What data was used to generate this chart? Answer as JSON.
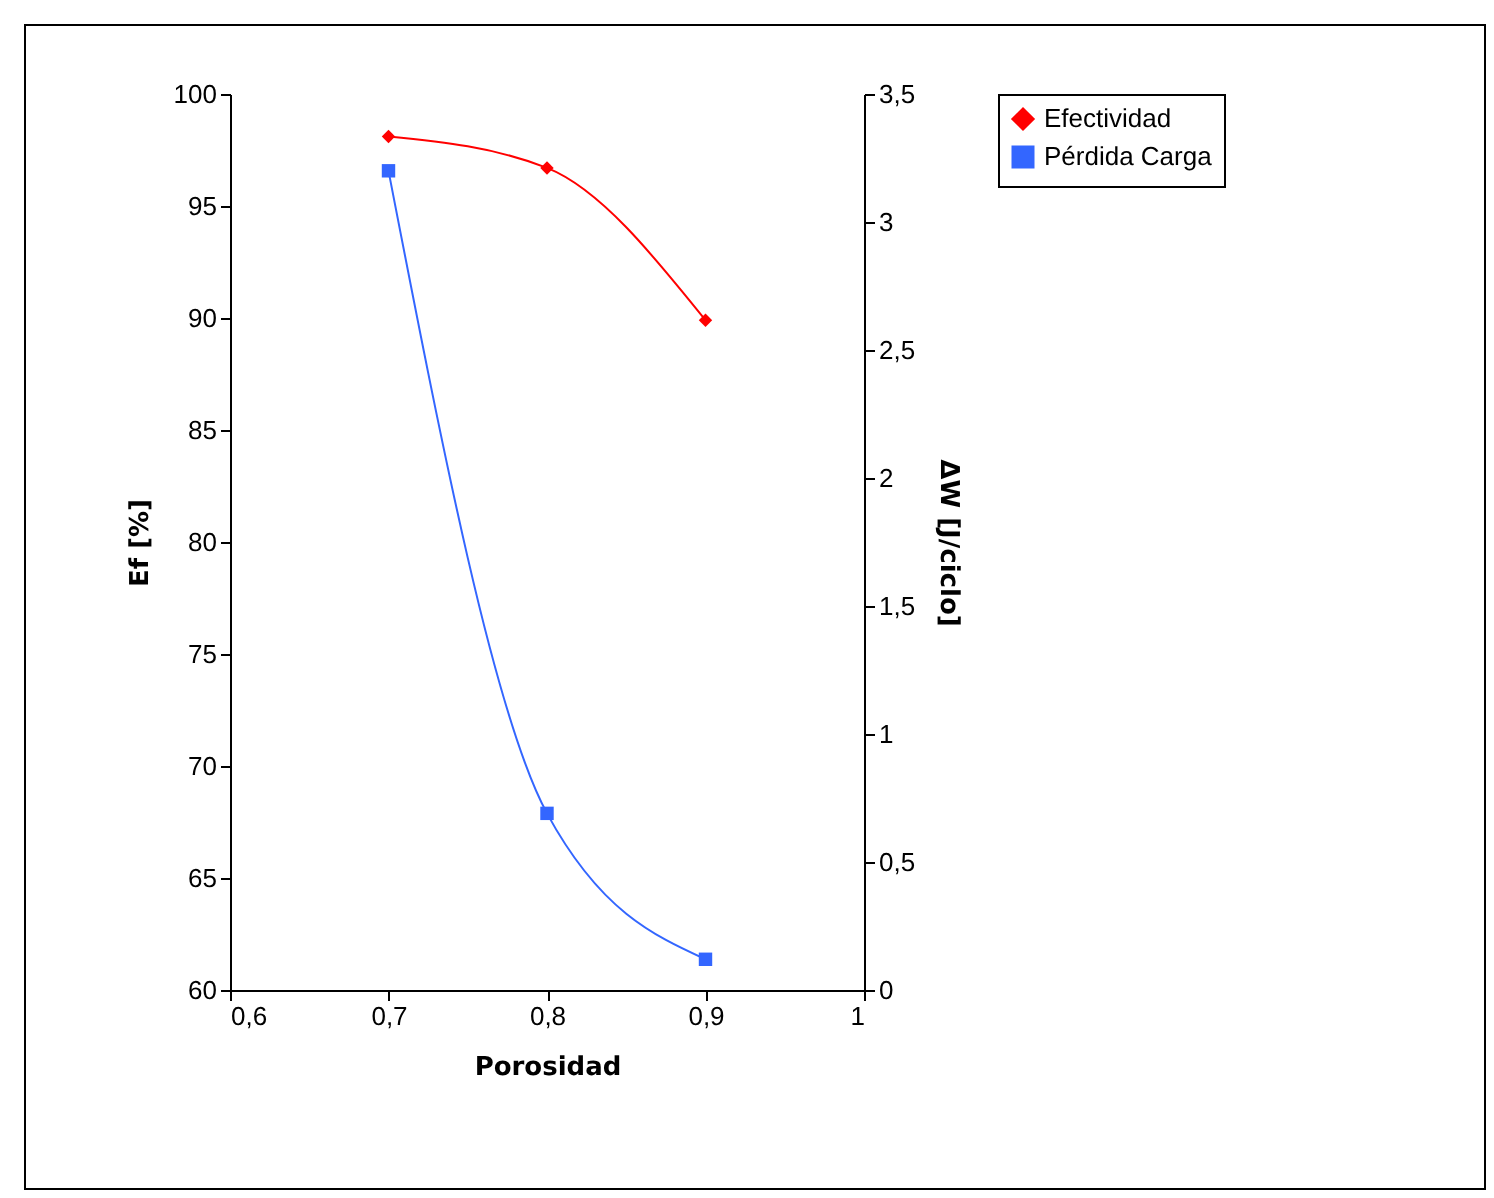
{
  "chart_data": {
    "type": "line",
    "xlabel": "Porosidad",
    "ylabel": "Ef [%]",
    "y2label": "ΔW [J/ciclo]",
    "x": [
      0.7,
      0.8,
      0.9
    ],
    "series": [
      {
        "name": "Efectividad",
        "color": "#ff0000",
        "marker": "diamond",
        "values": [
          98.1,
          96.7,
          89.9
        ]
      },
      {
        "name": "Pérdida Carga",
        "color": "#3366ff",
        "marker": "square",
        "axis": "y2",
        "values": [
          3.2,
          0.69,
          0.12
        ]
      }
    ],
    "xlim": [
      0.6,
      1
    ],
    "xticks": [
      {
        "value": 0.6,
        "label": "0,6"
      },
      {
        "value": 0.7,
        "label": "0,7"
      },
      {
        "value": 0.8,
        "label": "0,8"
      },
      {
        "value": 0.9,
        "label": "0,9"
      },
      1
    ],
    "ylim": [
      60,
      100
    ],
    "yticks": [
      60,
      65,
      70,
      75,
      80,
      85,
      90,
      95,
      100
    ],
    "y2lim": [
      0,
      3.5
    ],
    "y2ticks": [
      0,
      {
        "value": 0.5,
        "label": "0,5"
      },
      1,
      {
        "value": 1.5,
        "label": "1,5"
      },
      2,
      {
        "value": 2.5,
        "label": "2,5"
      },
      3,
      {
        "value": 3.5,
        "label": "3,5"
      }
    ],
    "legend": "right",
    "grid": false
  }
}
